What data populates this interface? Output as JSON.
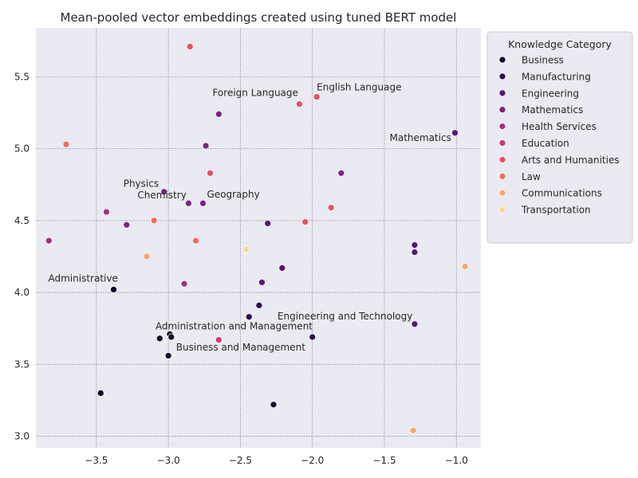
{
  "chart_data": {
    "type": "scatter",
    "title": "Mean-pooled vector embeddings created using tuned BERT model",
    "xlabel": "",
    "ylabel": "",
    "xlim": [
      -3.92,
      -0.83
    ],
    "ylim": [
      2.92,
      5.84
    ],
    "x_ticks": [
      -3.5,
      -3.0,
      -2.5,
      -2.0,
      -1.5,
      -1.0
    ],
    "x_tick_labels": [
      "−3.5",
      "−3.0",
      "−2.5",
      "−2.0",
      "−1.5",
      "−1.0"
    ],
    "y_ticks": [
      3.0,
      3.5,
      4.0,
      4.5,
      5.0,
      5.5
    ],
    "y_tick_labels": [
      "3.0",
      "3.5",
      "4.0",
      "4.5",
      "5.0",
      "5.5"
    ],
    "grid": true,
    "legend": {
      "title": "Knowledge Category",
      "placement": "outside-top-right"
    },
    "series": [
      {
        "name": "Business",
        "color": "#0b0924",
        "points": [
          {
            "x": -3.38,
            "y": 4.02
          },
          {
            "x": -2.99,
            "y": 3.71
          },
          {
            "x": -3.06,
            "y": 3.68
          },
          {
            "x": -2.98,
            "y": 3.69
          },
          {
            "x": -3.0,
            "y": 3.56
          },
          {
            "x": -3.47,
            "y": 3.3
          },
          {
            "x": -2.27,
            "y": 3.22
          }
        ]
      },
      {
        "name": "Manufacturing",
        "color": "#2c0b55",
        "points": [
          {
            "x": -2.37,
            "y": 3.91
          },
          {
            "x": -2.44,
            "y": 3.83
          },
          {
            "x": -2.0,
            "y": 3.69
          }
        ]
      },
      {
        "name": "Engineering",
        "color": "#571676",
        "points": [
          {
            "x": -1.29,
            "y": 4.33
          },
          {
            "x": -1.29,
            "y": 4.28
          },
          {
            "x": -1.29,
            "y": 3.78
          },
          {
            "x": -2.31,
            "y": 4.48
          },
          {
            "x": -2.21,
            "y": 4.17
          },
          {
            "x": -2.35,
            "y": 4.07
          },
          {
            "x": -1.01,
            "y": 5.11
          }
        ]
      },
      {
        "name": "Mathematics",
        "color": "#7c2280",
        "points": [
          {
            "x": -2.65,
            "y": 5.24
          },
          {
            "x": -2.74,
            "y": 5.02
          },
          {
            "x": -1.8,
            "y": 4.83
          },
          {
            "x": -3.03,
            "y": 4.7
          },
          {
            "x": -2.86,
            "y": 4.62
          },
          {
            "x": -2.76,
            "y": 4.62
          },
          {
            "x": -3.29,
            "y": 4.47
          }
        ]
      },
      {
        "name": "Health Services",
        "color": "#a3307e",
        "points": [
          {
            "x": -3.43,
            "y": 4.56
          },
          {
            "x": -3.83,
            "y": 4.36
          },
          {
            "x": -2.89,
            "y": 4.06
          }
        ]
      },
      {
        "name": "Education",
        "color": "#c83b6e",
        "points": [
          {
            "x": -2.65,
            "y": 3.67
          }
        ]
      },
      {
        "name": "Arts and Humanities",
        "color": "#e6505e",
        "points": [
          {
            "x": -2.85,
            "y": 5.71
          },
          {
            "x": -1.97,
            "y": 5.36
          },
          {
            "x": -2.09,
            "y": 5.31
          },
          {
            "x": -2.71,
            "y": 4.83
          },
          {
            "x": -1.87,
            "y": 4.59
          },
          {
            "x": -2.05,
            "y": 4.49
          }
        ]
      },
      {
        "name": "Law",
        "color": "#f26d58",
        "points": [
          {
            "x": -3.71,
            "y": 5.03
          },
          {
            "x": -3.1,
            "y": 4.5
          },
          {
            "x": -2.81,
            "y": 4.36
          }
        ]
      },
      {
        "name": "Communications",
        "color": "#f9a66d",
        "points": [
          {
            "x": -3.15,
            "y": 4.25
          },
          {
            "x": -0.94,
            "y": 4.18
          },
          {
            "x": -1.3,
            "y": 3.04
          }
        ]
      },
      {
        "name": "Transportation",
        "color": "#fbd598",
        "points": [
          {
            "x": -2.46,
            "y": 4.3
          }
        ]
      }
    ],
    "annotations": [
      {
        "text": "English Language",
        "x": -1.97,
        "y": 5.36
      },
      {
        "text": "Foreign Language",
        "x": -2.09,
        "y": 5.31
      },
      {
        "text": "Mathematics",
        "x": -1.01,
        "y": 5.11
      },
      {
        "text": "Geography",
        "x": -2.76,
        "y": 4.62
      },
      {
        "text": "Physics",
        "x": -3.03,
        "y": 4.7
      },
      {
        "text": "Chemistry",
        "x": -2.86,
        "y": 4.62
      },
      {
        "text": "Administrative",
        "x": -3.38,
        "y": 4.02
      },
      {
        "text": "Engineering and Technology",
        "x": -1.29,
        "y": 3.78
      },
      {
        "text": "Administration and Management",
        "x": -2.99,
        "y": 3.71
      },
      {
        "text": "Business and Management",
        "x": -2.98,
        "y": 3.69
      }
    ]
  }
}
